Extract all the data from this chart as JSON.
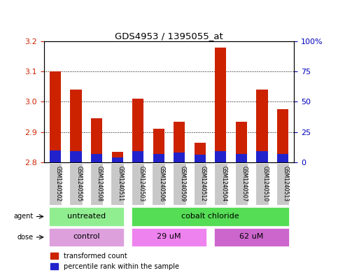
{
  "title": "GDS4953 / 1395055_at",
  "samples": [
    "GSM1240502",
    "GSM1240505",
    "GSM1240508",
    "GSM1240511",
    "GSM1240503",
    "GSM1240506",
    "GSM1240509",
    "GSM1240512",
    "GSM1240504",
    "GSM1240507",
    "GSM1240510",
    "GSM1240513"
  ],
  "red_values": [
    3.1,
    3.04,
    2.945,
    2.835,
    3.01,
    2.91,
    2.935,
    2.865,
    3.18,
    2.935,
    3.04,
    2.975
  ],
  "blue_pct": [
    10,
    9,
    7,
    4,
    9,
    7,
    8,
    6,
    9,
    7,
    9,
    7
  ],
  "ymin": 2.8,
  "ymax": 3.2,
  "yticks_left": [
    2.8,
    2.9,
    3.0,
    3.1,
    3.2
  ],
  "yticks_right": [
    0,
    25,
    50,
    75,
    100
  ],
  "ytick_right_labels": [
    "0",
    "25",
    "50",
    "75",
    "100%"
  ],
  "agent_groups": [
    {
      "label": "untreated",
      "start": 0,
      "end": 4,
      "color": "#90EE90"
    },
    {
      "label": "cobalt chloride",
      "start": 4,
      "end": 12,
      "color": "#55DD55"
    }
  ],
  "dose_groups": [
    {
      "label": "control",
      "start": 0,
      "end": 4,
      "color": "#DDA0DD"
    },
    {
      "label": "29 uM",
      "start": 4,
      "end": 8,
      "color": "#EE82EE"
    },
    {
      "label": "62 uM",
      "start": 8,
      "end": 12,
      "color": "#CC66CC"
    }
  ],
  "bar_color_red": "#CC2200",
  "bar_color_blue": "#2222CC",
  "bar_width": 0.55,
  "sample_box_color": "#C8C8C8",
  "tick_color_left": "#CC2200",
  "tick_color_right": "#0000BB",
  "legend_labels": [
    "transformed count",
    "percentile rank within the sample"
  ]
}
